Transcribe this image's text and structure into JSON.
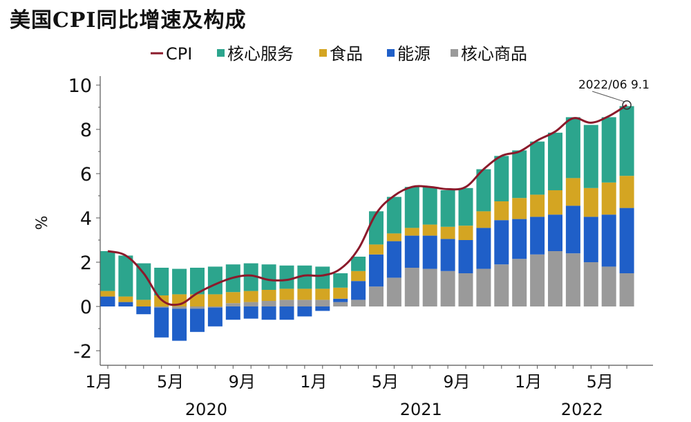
{
  "chart_data": {
    "type": "bar",
    "title": "美国CPI同比增速及构成",
    "ylabel": "%",
    "ylim": [
      -2,
      10
    ],
    "yticks": [
      "-2",
      "0",
      "2",
      "4",
      "6",
      "8",
      "10"
    ],
    "months": [
      "2020-01",
      "2020-02",
      "2020-03",
      "2020-04",
      "2020-05",
      "2020-06",
      "2020-07",
      "2020-08",
      "2020-09",
      "2020-10",
      "2020-11",
      "2020-12",
      "2021-01",
      "2021-02",
      "2021-03",
      "2021-04",
      "2021-05",
      "2021-06",
      "2021-07",
      "2021-08",
      "2021-09",
      "2021-10",
      "2021-11",
      "2021-12",
      "2022-01",
      "2022-02",
      "2022-03",
      "2022-04",
      "2022-05",
      "2022-06"
    ],
    "x_tick_labels": [
      {
        "index": 0,
        "label": "1月"
      },
      {
        "index": 4,
        "label": "5月"
      },
      {
        "index": 8,
        "label": "9月"
      },
      {
        "index": 12,
        "label": "1月"
      },
      {
        "index": 16,
        "label": "5月"
      },
      {
        "index": 20,
        "label": "9月"
      },
      {
        "index": 24,
        "label": "1月"
      },
      {
        "index": 28,
        "label": "5月"
      }
    ],
    "year_labels": [
      {
        "label": "2020",
        "center_index": 5.5
      },
      {
        "label": "2021",
        "center_index": 17.5
      },
      {
        "label": "2022",
        "center_index": 26.5
      }
    ],
    "series": [
      {
        "name": "核心商品",
        "color": "#9a9a9a",
        "values": [
          0.0,
          0.0,
          0.0,
          -0.05,
          -0.1,
          -0.1,
          -0.05,
          0.15,
          0.2,
          0.25,
          0.3,
          0.3,
          0.3,
          0.2,
          0.3,
          0.9,
          1.3,
          1.75,
          1.7,
          1.6,
          1.5,
          1.7,
          1.9,
          2.15,
          2.35,
          2.5,
          2.4,
          2.0,
          1.8,
          1.5
        ]
      },
      {
        "name": "能源",
        "color": "#1f5fc8",
        "values": [
          0.45,
          0.2,
          -0.35,
          -1.35,
          -1.45,
          -1.05,
          -0.85,
          -0.6,
          -0.55,
          -0.6,
          -0.6,
          -0.45,
          -0.2,
          0.15,
          0.85,
          1.45,
          1.65,
          1.45,
          1.5,
          1.45,
          1.5,
          1.85,
          2.0,
          1.8,
          1.7,
          1.65,
          2.15,
          2.05,
          2.35,
          2.95
        ]
      },
      {
        "name": "食品",
        "color": "#d4a522",
        "values": [
          0.25,
          0.25,
          0.3,
          0.5,
          0.55,
          0.55,
          0.55,
          0.5,
          0.5,
          0.5,
          0.5,
          0.5,
          0.5,
          0.5,
          0.45,
          0.45,
          0.35,
          0.35,
          0.5,
          0.55,
          0.65,
          0.75,
          0.85,
          0.95,
          1.0,
          1.1,
          1.25,
          1.3,
          1.45,
          1.45
        ]
      },
      {
        "name": "核心服务",
        "color": "#2ca58d",
        "values": [
          1.8,
          1.85,
          1.65,
          1.25,
          1.15,
          1.2,
          1.25,
          1.25,
          1.25,
          1.15,
          1.05,
          1.05,
          1.0,
          0.65,
          0.65,
          1.5,
          1.65,
          1.85,
          1.7,
          1.65,
          1.7,
          1.9,
          2.05,
          2.15,
          2.4,
          2.6,
          2.75,
          2.85,
          2.95,
          3.15
        ]
      },
      {
        "name": "CPI",
        "color": "#8b1a2b",
        "values": [
          2.5,
          2.3,
          1.5,
          0.3,
          0.1,
          0.6,
          1.0,
          1.3,
          1.4,
          1.2,
          1.2,
          1.4,
          1.4,
          1.7,
          2.6,
          4.2,
          5.0,
          5.4,
          5.4,
          5.3,
          5.4,
          6.2,
          6.8,
          7.0,
          7.5,
          7.9,
          8.5,
          8.3,
          8.6,
          9.1
        ]
      }
    ],
    "legend": {
      "placement": "top",
      "entries": [
        {
          "name": "CPI",
          "marker": "line"
        },
        {
          "name": "核心服务",
          "marker": "square"
        },
        {
          "name": "食品",
          "marker": "square"
        },
        {
          "name": "能源",
          "marker": "square"
        },
        {
          "name": "核心商品",
          "marker": "square"
        }
      ]
    },
    "annotation": {
      "text": "2022/06 9.1",
      "index": 29,
      "value": 9.1
    }
  }
}
